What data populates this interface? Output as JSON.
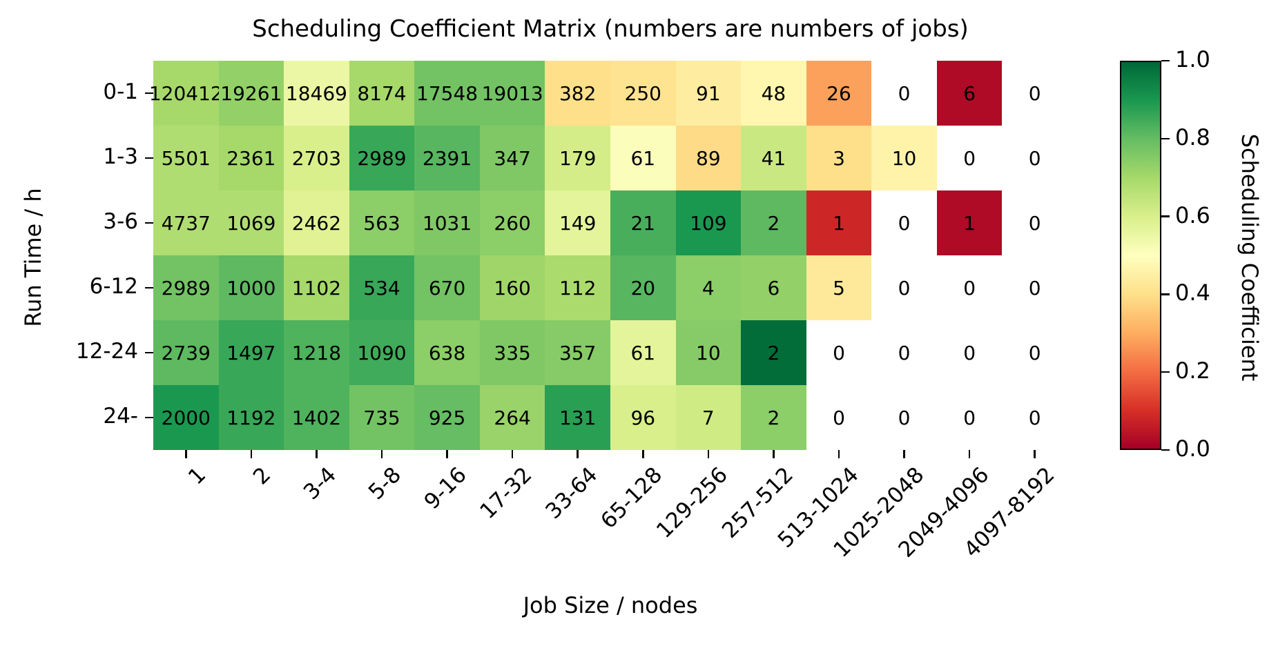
{
  "title": "Scheduling Coefficient Matrix (numbers are numbers of jobs)",
  "chart_data": {
    "type": "heatmap",
    "title": "Scheduling Coefficient Matrix (numbers are numbers of jobs)",
    "xlabel": "Job Size / nodes",
    "ylabel": "Run Time / h",
    "x_categories": [
      "1",
      "2",
      "3-4",
      "5-8",
      "9-16",
      "17-32",
      "33-64",
      "65-128",
      "129-256",
      "257-512",
      "513-1024",
      "1025-2048",
      "2049-4096",
      "4097-8192"
    ],
    "y_categories": [
      "0-1",
      "1-3",
      "3-6",
      "6-12",
      "12-24",
      "24-"
    ],
    "annotation_meaning": "numbers are numbers of jobs",
    "counts": [
      [
        120412,
        19261,
        18469,
        8174,
        17548,
        19013,
        382,
        250,
        91,
        48,
        26,
        0,
        6,
        0
      ],
      [
        5501,
        2361,
        2703,
        2989,
        2391,
        347,
        179,
        61,
        89,
        41,
        3,
        10,
        0,
        0
      ],
      [
        4737,
        1069,
        2462,
        563,
        1031,
        260,
        149,
        21,
        109,
        2,
        1,
        0,
        1,
        0
      ],
      [
        2989,
        1000,
        1102,
        534,
        670,
        160,
        112,
        20,
        4,
        6,
        5,
        0,
        0,
        0
      ],
      [
        2739,
        1497,
        1218,
        1090,
        638,
        335,
        357,
        61,
        10,
        2,
        0,
        0,
        0,
        0
      ],
      [
        2000,
        1192,
        1402,
        735,
        925,
        264,
        131,
        96,
        7,
        2,
        0,
        0,
        0,
        0
      ]
    ],
    "coefficients": [
      [
        0.7,
        0.73,
        0.55,
        0.7,
        0.78,
        0.78,
        0.4,
        0.41,
        0.44,
        0.47,
        0.28,
        null,
        0.02,
        null
      ],
      [
        0.68,
        0.7,
        0.6,
        0.86,
        0.82,
        0.76,
        0.61,
        0.51,
        0.39,
        0.63,
        0.4,
        0.46,
        null,
        null
      ],
      [
        0.68,
        0.68,
        0.58,
        0.74,
        0.76,
        0.74,
        0.57,
        0.84,
        0.9,
        0.81,
        0.08,
        null,
        0.02,
        null
      ],
      [
        0.78,
        0.81,
        0.7,
        0.86,
        0.78,
        0.71,
        0.69,
        0.82,
        0.74,
        0.73,
        0.43,
        null,
        null,
        null
      ],
      [
        0.81,
        0.86,
        0.83,
        0.85,
        0.74,
        0.76,
        0.75,
        0.57,
        0.75,
        0.99,
        null,
        null,
        null,
        null
      ],
      [
        0.9,
        0.86,
        0.83,
        0.78,
        0.8,
        0.72,
        0.88,
        0.6,
        0.62,
        0.74,
        null,
        null,
        null,
        null
      ]
    ],
    "no_data_color": "#ffffff",
    "annotation_text_color": "#000000",
    "colorbar": {
      "label": "Scheduling Coefficient",
      "ticks": [
        "1.0",
        "0.8",
        "0.6",
        "0.4",
        "0.2",
        "0.0"
      ],
      "tick_values": [
        1.0,
        0.8,
        0.6,
        0.4,
        0.2,
        0.0
      ],
      "min": 0.0,
      "max": 1.0,
      "position": "right",
      "colormap": "RdYlGn",
      "colormap_anchors": [
        "#a50026",
        "#d73027",
        "#f46d43",
        "#fdae61",
        "#fee08b",
        "#ffffbf",
        "#d9ef8b",
        "#a6d96a",
        "#66bd63",
        "#1a9850",
        "#006837"
      ]
    },
    "grid": false,
    "x_tick_rotation_deg": 45,
    "x_axis_range_note": "categorical, 14 bins",
    "y_axis_range_note": "categorical, 6 bins"
  }
}
